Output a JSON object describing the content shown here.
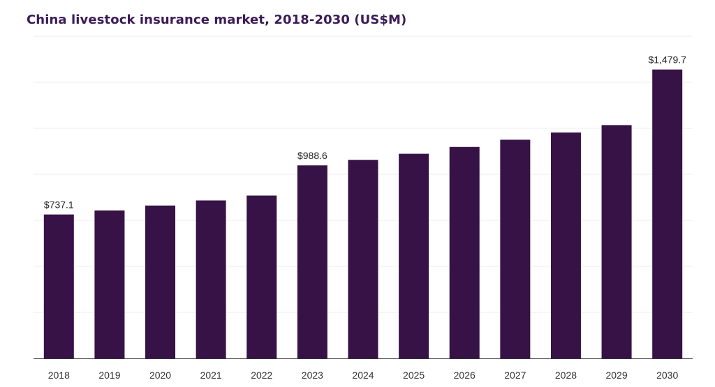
{
  "chart_data": {
    "type": "bar",
    "title": "China livestock insurance market, 2018-2030 (US$M)",
    "categories": [
      "2018",
      "2019",
      "2020",
      "2021",
      "2022",
      "2023",
      "2024",
      "2025",
      "2026",
      "2027",
      "2028",
      "2029",
      "2030"
    ],
    "values": [
      737.1,
      758,
      783,
      809,
      834,
      988.6,
      1017,
      1048,
      1083,
      1120,
      1157,
      1195,
      1479.7
    ],
    "data_labels": {
      "0": "$737.1",
      "5": "$988.6",
      "12": "$1,479.7"
    },
    "ylim": [
      0,
      1650
    ],
    "grid": true,
    "bar_color": "#361246",
    "xlabel": "",
    "ylabel": ""
  }
}
